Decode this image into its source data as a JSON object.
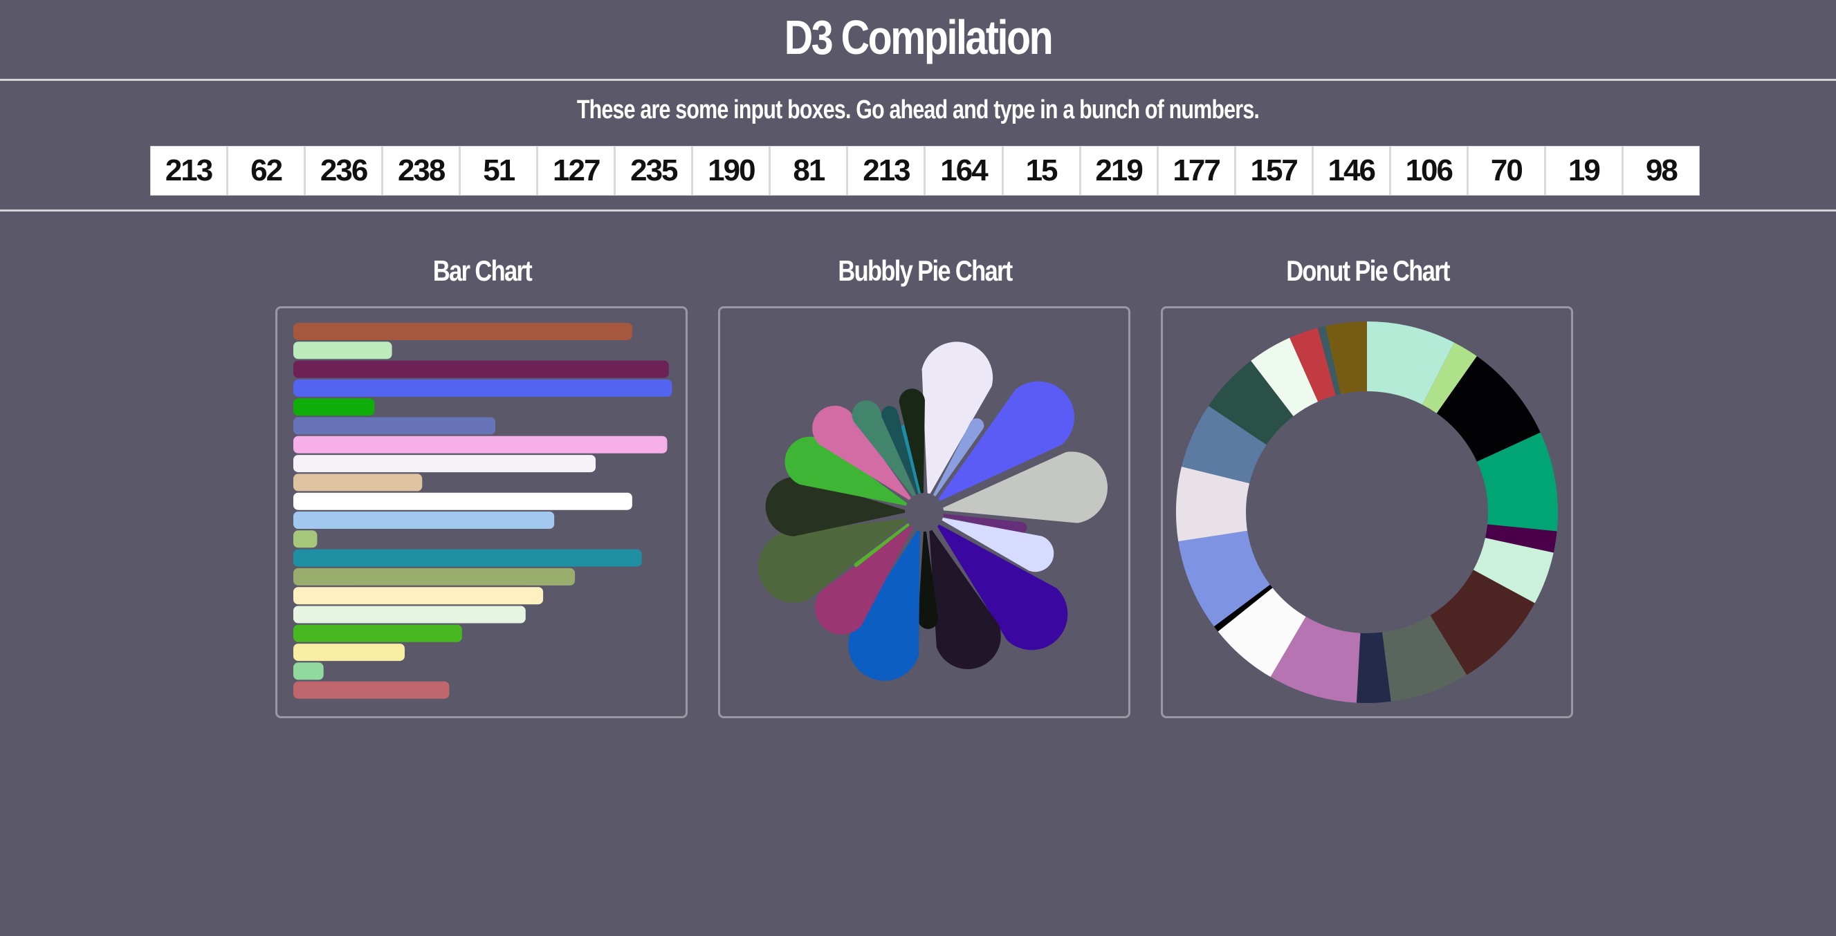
{
  "page": {
    "title": "D3 Compilation",
    "instructions": "These are some input boxes. Go ahead and type in a bunch of numbers."
  },
  "inputs": [
    213,
    62,
    236,
    238,
    51,
    127,
    235,
    190,
    81,
    213,
    164,
    15,
    219,
    177,
    157,
    146,
    106,
    70,
    19,
    98
  ],
  "colors": [
    "#a8573f",
    "#bdebbc",
    "#6d2157",
    "#5365f0",
    "#0fad0a",
    "#6874b8",
    "#f7afe9",
    "#f7f2f7",
    "#ddc39f",
    "#ffffff",
    "#a3c8f0",
    "#a4c77c",
    "#1f8fa3",
    "#99ad6d",
    "#fff0c2",
    "#e6f5e1",
    "#47b81f",
    "#f7eda3",
    "#91d99e",
    "#c0666d"
  ],
  "chart_data": [
    {
      "type": "bar",
      "title": "Bar Chart",
      "values": [
        213,
        62,
        236,
        238,
        51,
        127,
        235,
        190,
        81,
        213,
        164,
        15,
        219,
        177,
        157,
        146,
        106,
        70,
        19,
        98
      ],
      "colors": [
        "#a8573f",
        "#bdebbc",
        "#6d2157",
        "#5365f0",
        "#0fad0a",
        "#6874b8",
        "#f7afe9",
        "#f7f2f7",
        "#ddc39f",
        "#ffffff",
        "#a3c8f0",
        "#a4c77c",
        "#1f8fa3",
        "#99ad6d",
        "#fff0c2",
        "#e6f5e1",
        "#47b81f",
        "#f7eda3",
        "#91d99e",
        "#c0666d"
      ]
    },
    {
      "type": "pie",
      "title": "Bubbly Pie Chart",
      "values": [
        213,
        62,
        236,
        238,
        51,
        127,
        235,
        190,
        81,
        213,
        164,
        15,
        219,
        177,
        157,
        146,
        106,
        70,
        19,
        98
      ],
      "colors": [
        "#ede8f5",
        "#8a9ee0",
        "#5a5cf5",
        "#c5c8c2",
        "#672f7a",
        "#d6dbff",
        "#3a08a0",
        "#211629",
        "#0f140f",
        "#0c5ec3",
        "#9a3672",
        "#55b22a",
        "#4f683d",
        "#283220",
        "#3fb535",
        "#d36ca5",
        "#43856c",
        "#1a5258",
        "#1c8da4",
        "#182716"
      ]
    },
    {
      "type": "pie",
      "title": "Donut Pie Chart",
      "values": [
        213,
        62,
        236,
        238,
        51,
        127,
        235,
        190,
        81,
        213,
        164,
        15,
        219,
        177,
        157,
        146,
        106,
        70,
        19,
        98
      ],
      "colors": [
        "#b3ebd6",
        "#afe08a",
        "#020104",
        "#01a574",
        "#4a0149",
        "#cbf0db",
        "#4c2422",
        "#5a655d",
        "#232a4a",
        "#b674b3",
        "#fbfbfb",
        "#000000",
        "#7e94e2",
        "#e8e2e8",
        "#5b7ba2",
        "#2a5047",
        "#edfaed",
        "#c33b42",
        "#3c5b62",
        "#775d14"
      ]
    }
  ]
}
